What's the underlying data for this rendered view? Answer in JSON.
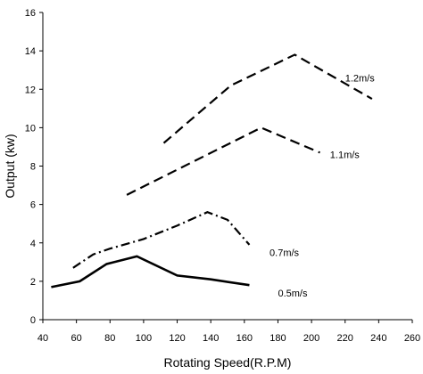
{
  "chart_data": {
    "type": "line",
    "xlabel": "Rotating Speed(R.P.M)",
    "ylabel": "Output (kw)",
    "xlim": [
      40,
      260
    ],
    "ylim": [
      0,
      16
    ],
    "xticks": [
      40,
      60,
      80,
      100,
      120,
      140,
      160,
      180,
      200,
      220,
      240,
      260
    ],
    "yticks": [
      0,
      2,
      4,
      6,
      8,
      10,
      12,
      14,
      16
    ],
    "grid": false,
    "legend": "none",
    "series": [
      {
        "name": "0.5m/s",
        "style": "solid",
        "x": [
          45,
          62,
          78,
          96,
          120,
          140,
          163
        ],
        "y": [
          1.7,
          2.0,
          2.9,
          3.3,
          2.3,
          2.1,
          1.8
        ],
        "label_at": [
          180,
          1.4
        ]
      },
      {
        "name": "0.7m/s",
        "style": "dashdot",
        "x": [
          58,
          70,
          80,
          100,
          120,
          138,
          150,
          163
        ],
        "y": [
          2.7,
          3.4,
          3.7,
          4.2,
          4.9,
          5.6,
          5.2,
          3.9
        ],
        "label_at": [
          175,
          3.5
        ]
      },
      {
        "name": "1.1m/s",
        "style": "dashed",
        "x": [
          90,
          170,
          205
        ],
        "y": [
          6.5,
          10.0,
          8.7
        ],
        "label_at": [
          211,
          8.6
        ]
      },
      {
        "name": "1.2m/s",
        "style": "dashed",
        "x": [
          112,
          152,
          190,
          236
        ],
        "y": [
          9.2,
          12.2,
          13.8,
          11.5
        ],
        "label_at": [
          220,
          12.6
        ]
      }
    ]
  }
}
